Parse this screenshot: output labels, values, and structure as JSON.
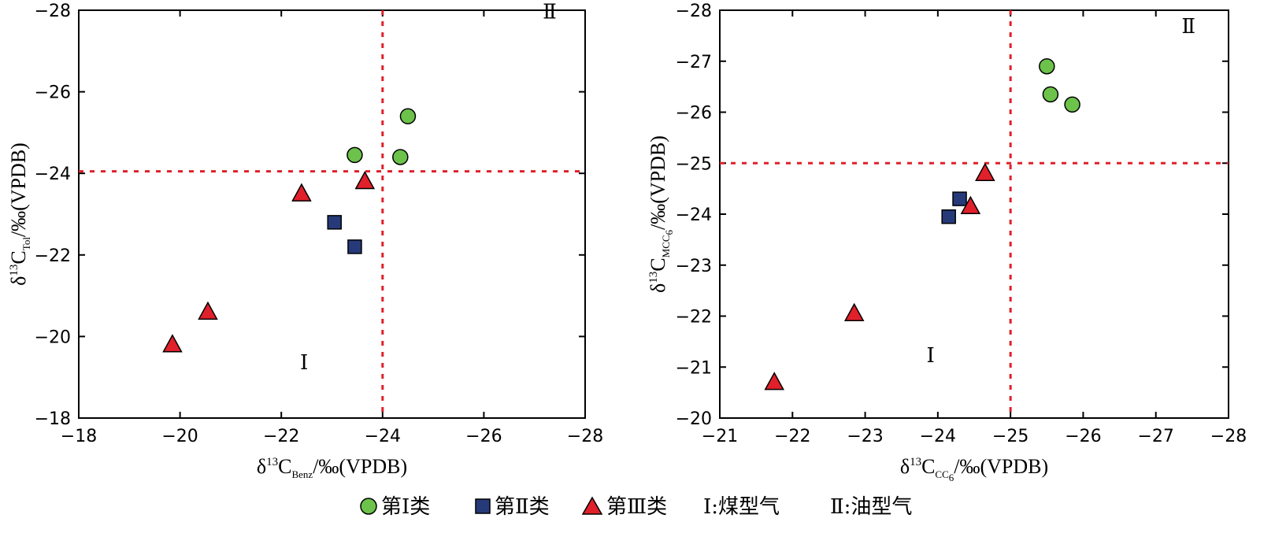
{
  "chart_data": [
    {
      "type": "scatter",
      "xlabel": {
        "prefix": "δ",
        "sup": "13",
        "main": "C",
        "sub": "Benz",
        "suffix": "/‰(VPDB)"
      },
      "ylabel": {
        "prefix": "δ",
        "sup": "13",
        "main": "C",
        "sub": "Tol",
        "suffix": "/‰(VPDB)"
      },
      "xlim": [
        -18,
        -28
      ],
      "ylim": [
        -18,
        -28
      ],
      "xticks": [
        -18,
        -20,
        -22,
        -24,
        -26,
        -28
      ],
      "yticks": [
        -18,
        -20,
        -22,
        -24,
        -26,
        -28
      ],
      "xtick_labels": [
        "−18",
        "−20",
        "−22",
        "−24",
        "−26",
        "−28"
      ],
      "ytick_labels": [
        "−18",
        "−20",
        "−22",
        "−24",
        "−26",
        "−28"
      ],
      "divider_x": -24,
      "divider_y": -24.05,
      "regions": [
        {
          "label": "Ⅰ",
          "x": -22.45,
          "y": -19.2
        },
        {
          "label": "Ⅱ",
          "x": -27.3,
          "y": -27.8
        }
      ],
      "series": [
        {
          "name": "第Ⅰ类",
          "marker": "circle",
          "color": "#6cc24a",
          "points": [
            [
              -24.5,
              -25.4
            ],
            [
              -23.45,
              -24.45
            ],
            [
              -24.35,
              -24.4
            ]
          ]
        },
        {
          "name": "第Ⅱ类",
          "marker": "square",
          "color": "#263a7a",
          "points": [
            [
              -23.05,
              -22.8
            ],
            [
              -23.45,
              -22.2
            ]
          ]
        },
        {
          "name": "第Ⅲ类",
          "marker": "triangle",
          "color": "#e0202a",
          "points": [
            [
              -22.4,
              -23.5
            ],
            [
              -23.65,
              -23.8
            ],
            [
              -20.55,
              -20.6
            ],
            [
              -19.85,
              -19.8
            ]
          ]
        }
      ]
    },
    {
      "type": "scatter",
      "xlabel": {
        "prefix": "δ",
        "sup": "13",
        "main": "C",
        "sub": "CC",
        "subsub": "6",
        "suffix": "/‰(VPDB)"
      },
      "ylabel": {
        "prefix": "δ",
        "sup": "13",
        "main": "C",
        "sub": "MCC",
        "subsub": "6",
        "suffix": "/‰(VPDB)"
      },
      "xlim": [
        -21,
        -28
      ],
      "ylim": [
        -20,
        -28
      ],
      "xticks": [
        -21,
        -22,
        -23,
        -24,
        -25,
        -26,
        -27,
        -28
      ],
      "yticks": [
        -20,
        -21,
        -22,
        -23,
        -24,
        -25,
        -26,
        -27,
        -28
      ],
      "xtick_labels": [
        "−21",
        "−22",
        "−23",
        "−24",
        "−25",
        "−26",
        "−27",
        "−28"
      ],
      "ytick_labels": [
        "−20",
        "−21",
        "−22",
        "−23",
        "−24",
        "−25",
        "−26",
        "−27",
        "−28"
      ],
      "divider_x": -25,
      "divider_y": -25,
      "regions": [
        {
          "label": "Ⅰ",
          "x": -23.9,
          "y": -21.1
        },
        {
          "label": "Ⅱ",
          "x": -27.45,
          "y": -27.55
        }
      ],
      "series": [
        {
          "name": "第Ⅰ类",
          "marker": "circle",
          "color": "#6cc24a",
          "points": [
            [
              -25.5,
              -26.9
            ],
            [
              -25.55,
              -26.35
            ],
            [
              -25.85,
              -26.15
            ]
          ]
        },
        {
          "name": "第Ⅱ类",
          "marker": "square",
          "color": "#263a7a",
          "points": [
            [
              -24.3,
              -24.3
            ],
            [
              -24.15,
              -23.95
            ]
          ]
        },
        {
          "name": "第Ⅲ类",
          "marker": "triangle",
          "color": "#e0202a",
          "points": [
            [
              -24.65,
              -24.8
            ],
            [
              -24.45,
              -24.15
            ],
            [
              -22.85,
              -22.05
            ],
            [
              -21.75,
              -20.7
            ]
          ]
        }
      ]
    }
  ],
  "legend": {
    "items": [
      {
        "label": "第Ⅰ类",
        "marker": "circle",
        "color": "#6cc24a"
      },
      {
        "label": "第Ⅱ类",
        "marker": "square",
        "color": "#263a7a"
      },
      {
        "label": "第Ⅲ类",
        "marker": "triangle",
        "color": "#e0202a"
      }
    ],
    "note_1": "Ⅰ:煤型气",
    "note_2": "Ⅱ:油型气"
  },
  "colors": {
    "divider": "#e0202a",
    "axis": "#000000",
    "marker_edge": "#000000"
  }
}
